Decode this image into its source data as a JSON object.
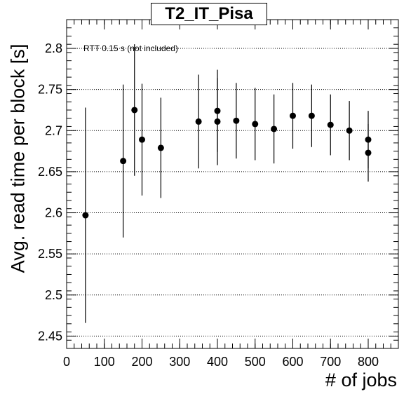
{
  "chart_data": {
    "type": "scatter",
    "title": "T2_IT_Pisa",
    "xlabel": "# of jobs",
    "ylabel": "Avg. read time per block [s]",
    "annotation": "RTT 0.15 s (not included)",
    "xlim": [
      0,
      880
    ],
    "ylim": [
      2.435,
      2.835
    ],
    "xticks": [
      0,
      100,
      200,
      300,
      400,
      500,
      600,
      700,
      800
    ],
    "yticks": [
      2.45,
      2.5,
      2.55,
      2.6,
      2.65,
      2.7,
      2.75,
      2.8
    ],
    "ytick_labels": [
      "2.45",
      "2.5",
      "2.55",
      "2.6",
      "2.65",
      "2.7",
      "2.75",
      "2.8"
    ],
    "grid": "horizontal dotted",
    "marker_color": "#000000",
    "points": [
      {
        "x": 50,
        "y": 2.597,
        "err": 0.131
      },
      {
        "x": 150,
        "y": 2.663,
        "err": 0.093
      },
      {
        "x": 180,
        "y": 2.725,
        "err": 0.08
      },
      {
        "x": 200,
        "y": 2.689,
        "err": 0.068
      },
      {
        "x": 250,
        "y": 2.679,
        "err": 0.061
      },
      {
        "x": 350,
        "y": 2.711,
        "err": 0.057
      },
      {
        "x": 400,
        "y": 2.724,
        "err": 0.05
      },
      {
        "x": 400,
        "y": 2.711,
        "err": 0.053
      },
      {
        "x": 450,
        "y": 2.712,
        "err": 0.046
      },
      {
        "x": 500,
        "y": 2.708,
        "err": 0.044
      },
      {
        "x": 550,
        "y": 2.702,
        "err": 0.042
      },
      {
        "x": 600,
        "y": 2.718,
        "err": 0.04
      },
      {
        "x": 650,
        "y": 2.718,
        "err": 0.038
      },
      {
        "x": 700,
        "y": 2.707,
        "err": 0.037
      },
      {
        "x": 750,
        "y": 2.7,
        "err": 0.036
      },
      {
        "x": 800,
        "y": 2.689,
        "err": 0.035
      },
      {
        "x": 800,
        "y": 2.673,
        "err": 0.035
      }
    ]
  }
}
